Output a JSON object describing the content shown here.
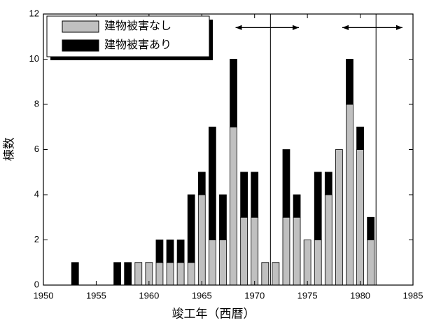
{
  "chart_data": {
    "type": "stacked_bar",
    "xlabel": "竣工年（西暦）",
    "ylabel": "棟数",
    "x": [
      1953,
      1957,
      1958,
      1959,
      1960,
      1961,
      1962,
      1963,
      1964,
      1965,
      1966,
      1967,
      1968,
      1969,
      1970,
      1971,
      1972,
      1973,
      1974,
      1975,
      1976,
      1977,
      1978,
      1979,
      1980,
      1981
    ],
    "series": [
      {
        "name": "建物被害なし",
        "color": "#c0c0c0",
        "values": [
          0,
          0,
          0,
          1,
          1,
          1,
          1,
          1,
          1,
          4,
          2,
          2,
          7,
          3,
          3,
          1,
          1,
          3,
          3,
          2,
          2,
          4,
          6,
          8,
          6,
          2
        ]
      },
      {
        "name": "建物被害あり",
        "color": "#000000",
        "values": [
          1,
          1,
          1,
          0,
          0,
          1,
          1,
          1,
          3,
          1,
          5,
          2,
          3,
          2,
          2,
          0,
          0,
          3,
          1,
          0,
          3,
          1,
          0,
          2,
          1,
          1
        ]
      }
    ],
    "xlim": [
      1950,
      1985
    ],
    "xticks": [
      1950,
      1955,
      1960,
      1965,
      1970,
      1975,
      1980,
      1985
    ],
    "ylim": [
      0,
      12
    ],
    "yticks": [
      0,
      2,
      4,
      6,
      8,
      10,
      12
    ],
    "vlines": [
      1971.5,
      1981.5
    ],
    "arrows": [
      {
        "from": 1968.2,
        "to": 1974.2,
        "y": 11.4
      },
      {
        "from": 1978.3,
        "to": 1984,
        "y": 11.4
      }
    ],
    "legend": "top-left"
  }
}
